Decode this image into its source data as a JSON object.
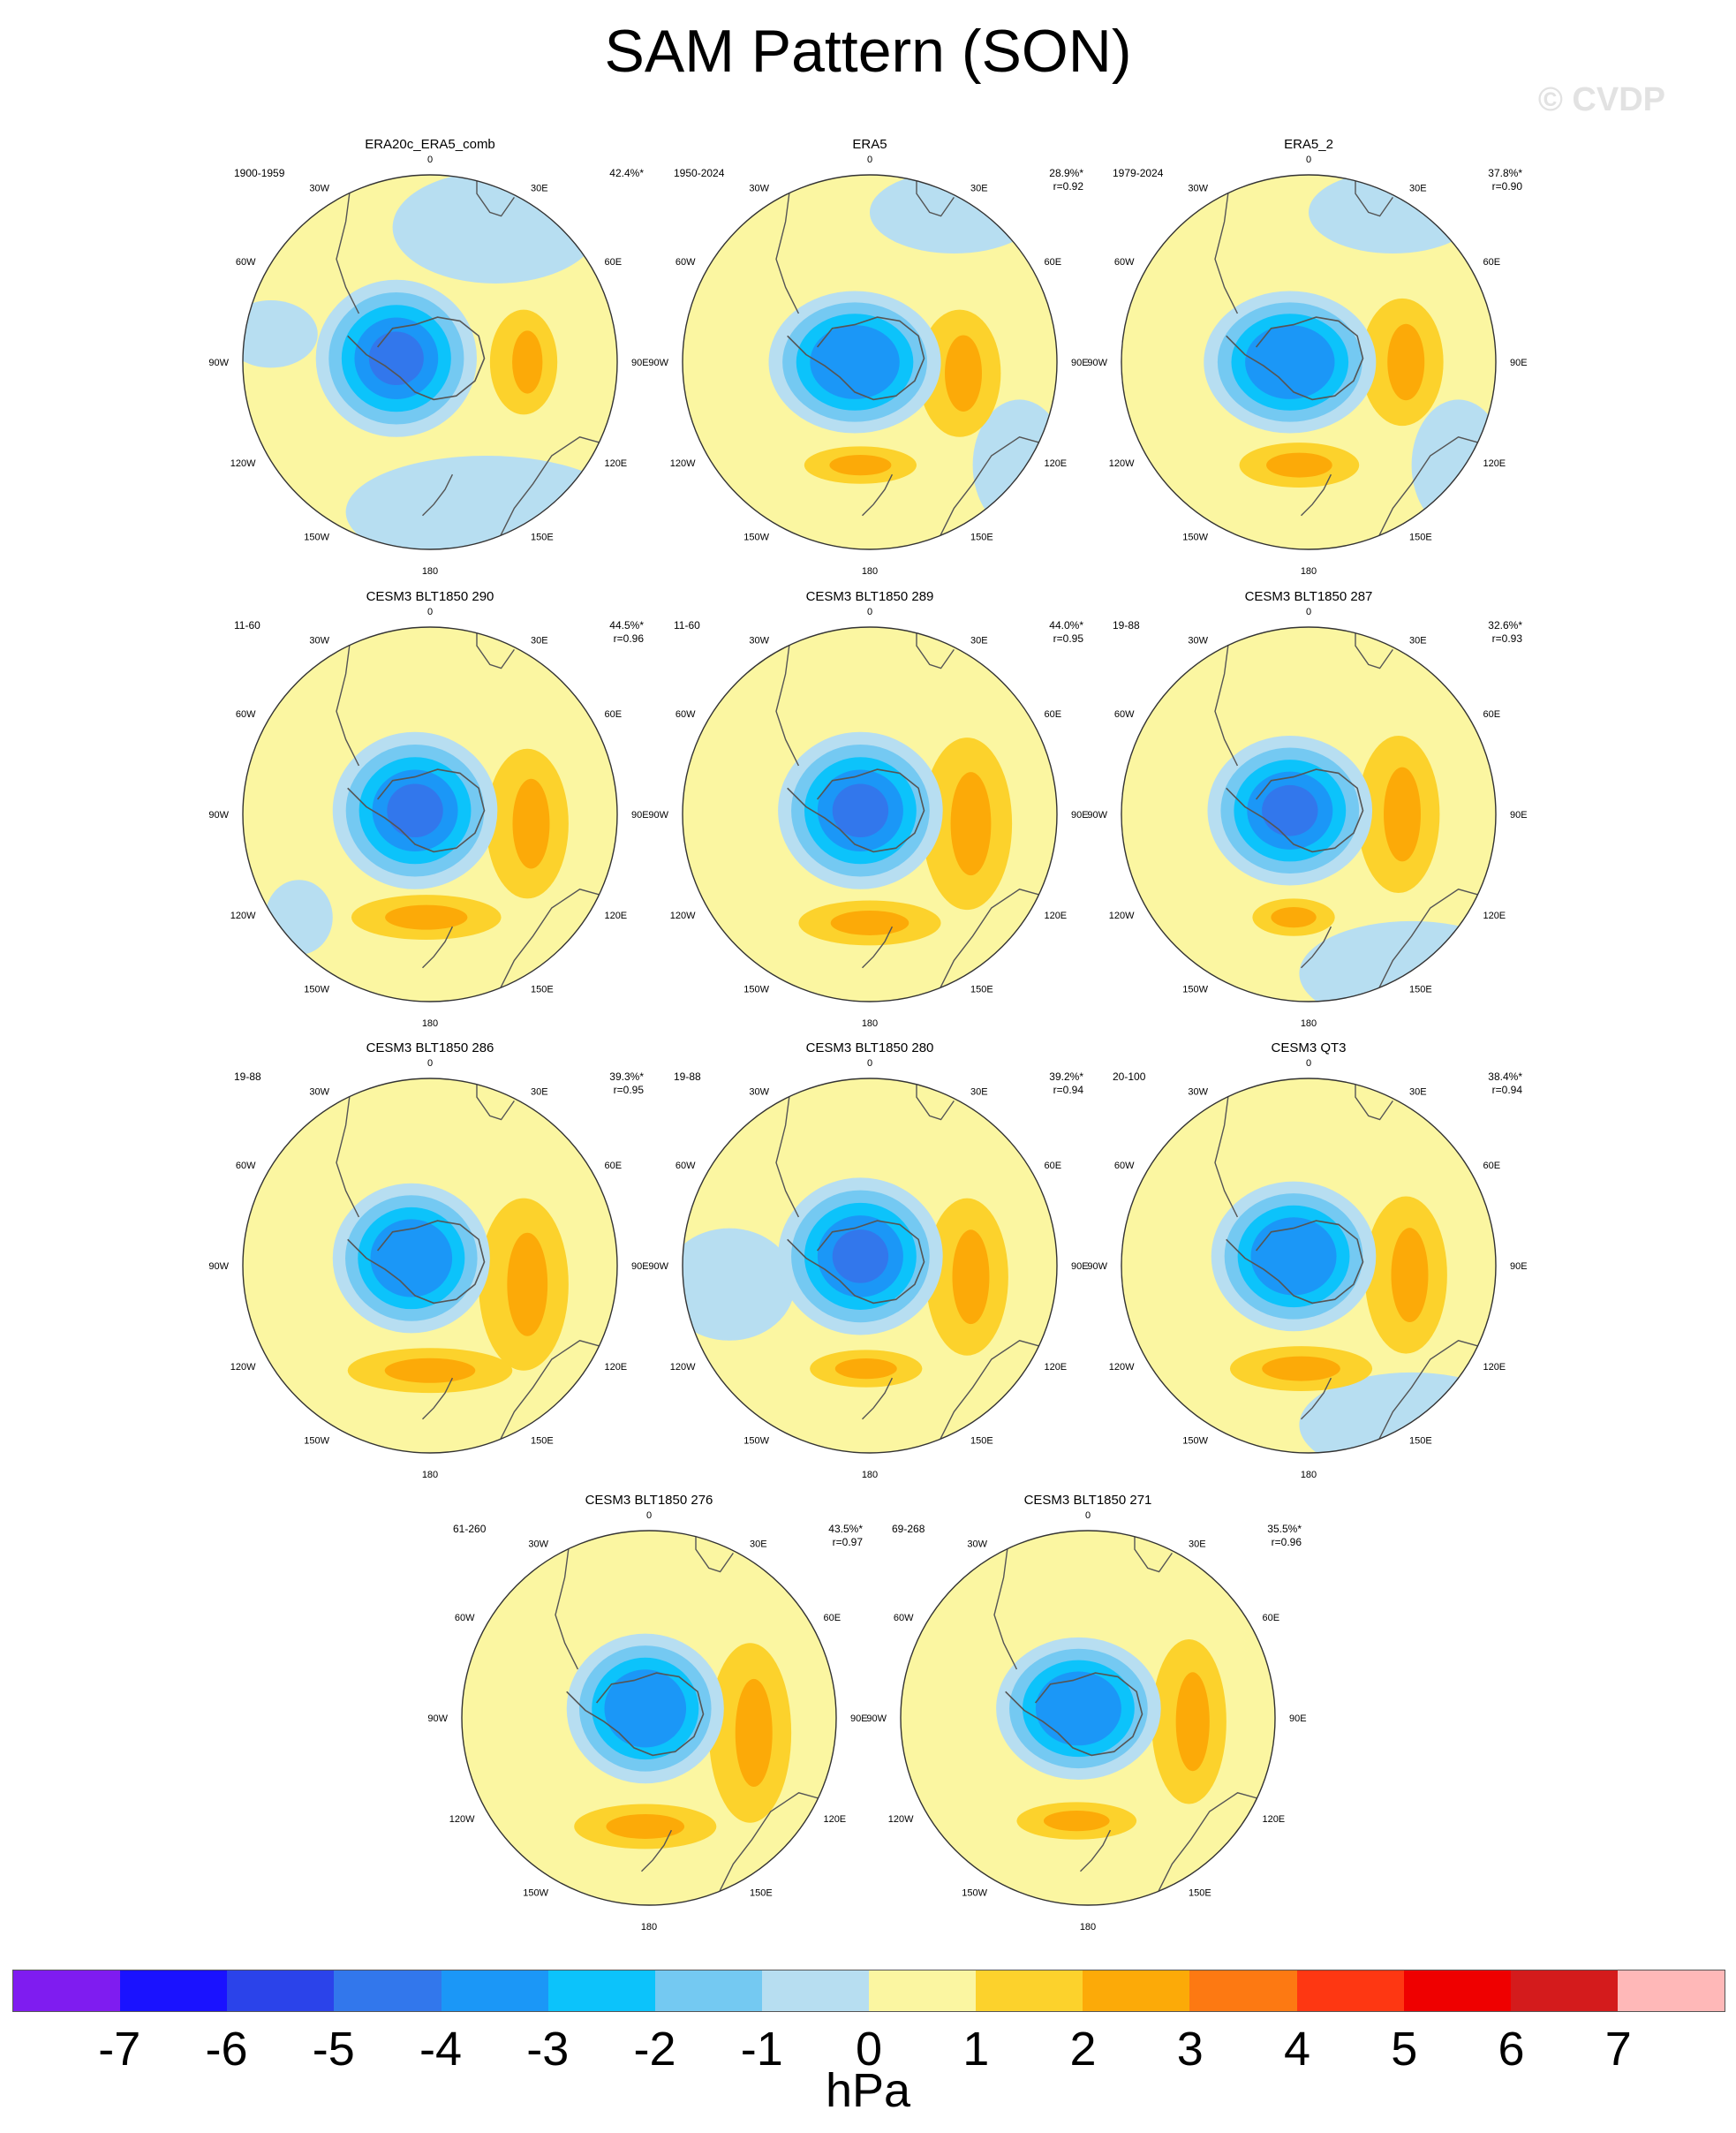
{
  "title": "SAM Pattern (SON)",
  "watermark": "© CVDP",
  "colorbar": {
    "colors": [
      "#7f1cf0",
      "#1a12ff",
      "#2b43ea",
      "#3277ec",
      "#1b97f7",
      "#0cc3fb",
      "#74c9f2",
      "#b7def1",
      "#fbf6a1",
      "#fcd22c",
      "#fcaa08",
      "#fd7912",
      "#fe3712",
      "#ef0000",
      "#d41b1c",
      "#ffb8b8"
    ],
    "ticks": [
      "-7",
      "-6",
      "-5",
      "-4",
      "-3",
      "-2",
      "-1",
      "0",
      "1",
      "2",
      "3",
      "4",
      "5",
      "6",
      "7"
    ],
    "unit": "hPa"
  },
  "lon_labels": {
    "l0": "0",
    "l30e": "30E",
    "l60e": "60E",
    "l90e": "90E",
    "l120e": "120E",
    "l150e": "150E",
    "l180": "180",
    "l150w": "150W",
    "l120w": "120W",
    "l90w": "90W",
    "l60w": "60W",
    "l30w": "30W"
  },
  "panels": [
    {
      "title": "ERA20c_ERA5_comb",
      "years": "1900-1959",
      "pct": "42.4%*",
      "r": ""
    },
    {
      "title": "ERA5",
      "years": "1950-2024",
      "pct": "28.9%*",
      "r": "r=0.92"
    },
    {
      "title": "ERA5_2",
      "years": "1979-2024",
      "pct": "37.8%*",
      "r": "r=0.90"
    },
    {
      "title": "CESM3 BLT1850 290",
      "years": "11-60",
      "pct": "44.5%*",
      "r": "r=0.96"
    },
    {
      "title": "CESM3 BLT1850 289",
      "years": "11-60",
      "pct": "44.0%*",
      "r": "r=0.95"
    },
    {
      "title": "CESM3 BLT1850 287",
      "years": "19-88",
      "pct": "32.6%*",
      "r": "r=0.93"
    },
    {
      "title": "CESM3 BLT1850 286",
      "years": "19-88",
      "pct": "39.3%*",
      "r": "r=0.95"
    },
    {
      "title": "CESM3 BLT1850 280",
      "years": "19-88",
      "pct": "39.2%*",
      "r": "r=0.94"
    },
    {
      "title": "CESM3 QT3",
      "years": "20-100",
      "pct": "38.4%*",
      "r": "r=0.94"
    },
    {
      "title": "CESM3 BLT1850 276",
      "years": "61-260",
      "pct": "43.5%*",
      "r": "r=0.97"
    },
    {
      "title": "CESM3 BLT1850 271",
      "years": "69-268",
      "pct": "35.5%*",
      "r": "r=0.96"
    }
  ]
}
